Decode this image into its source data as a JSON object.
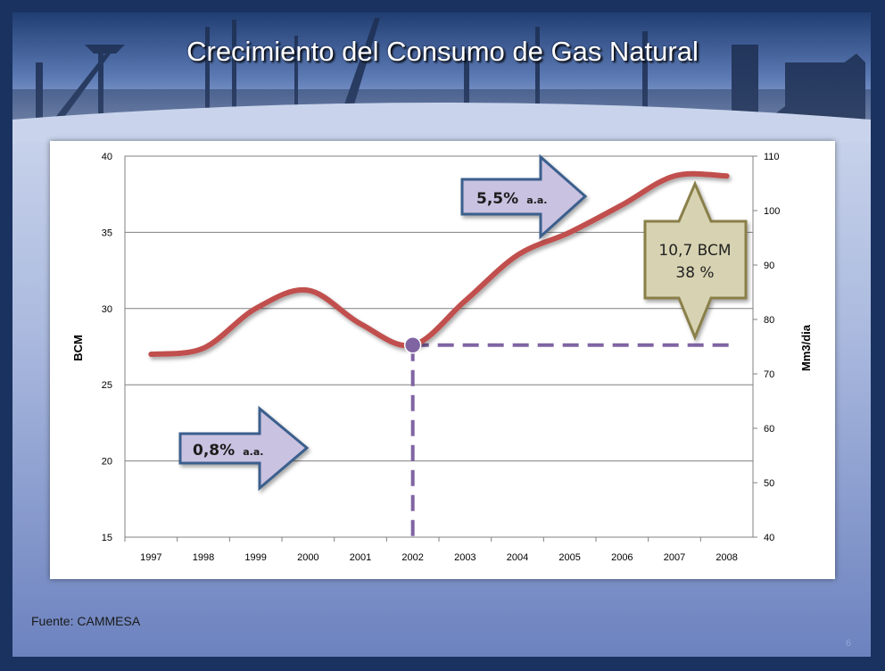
{
  "slide": {
    "title": "Crecimiento del Consumo de Gas Natural",
    "source": "Fuente: CAMMESA",
    "slide_number": "6"
  },
  "colors": {
    "line": "#c0504d",
    "dashed": "#8064a2",
    "arrow_fill": "#c9c2e0",
    "arrow_stroke": "#3b5f8d",
    "callout_fill": "#d7d3b2",
    "callout_stroke": "#8a7f4a",
    "grid": "#808080"
  },
  "chart_data": {
    "type": "line",
    "categories": [
      "1997",
      "1998",
      "1999",
      "2000",
      "2001",
      "2002",
      "2003",
      "2004",
      "2005",
      "2006",
      "2007",
      "2008"
    ],
    "series": [
      {
        "name": "",
        "values": [
          27.0,
          27.4,
          30.0,
          31.2,
          29.0,
          27.6,
          30.5,
          33.5,
          35.0,
          36.8,
          38.7,
          38.7
        ]
      }
    ],
    "y_left": {
      "label": "BCM",
      "min": 15,
      "max": 40,
      "ticks": [
        15,
        20,
        25,
        30,
        35,
        40
      ]
    },
    "y_right": {
      "label": "Mm3/dia",
      "min": 40,
      "max": 110,
      "ticks": [
        40,
        50,
        60,
        70,
        80,
        90,
        100,
        110
      ]
    },
    "grid": true,
    "annotations": {
      "arrow_low": {
        "value": "0,8%",
        "suffix": "a.a."
      },
      "arrow_high": {
        "value": "5,5%",
        "suffix": "a.a."
      },
      "callout": {
        "line1": "10,7 BCM",
        "line2": "38 %"
      },
      "marker": {
        "year": "2002",
        "value": 27.6
      }
    }
  }
}
